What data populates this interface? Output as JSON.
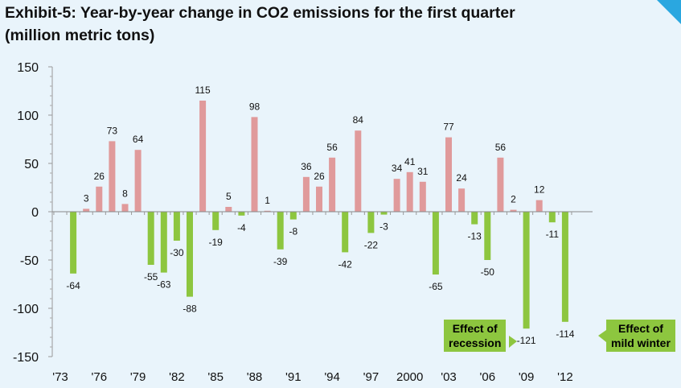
{
  "header": {
    "title_line1": "Exhibit-5: Year-by-year change in CO2 emissions for the first quarter",
    "title_line2": "(million metric tons)"
  },
  "chart_data": {
    "type": "bar",
    "title": "Exhibit-5: Year-by-year change in CO2 emissions for the first quarter (million metric tons)",
    "xlabel": "",
    "ylabel": "",
    "ylim": [
      -150,
      150
    ],
    "yticks": [
      150,
      100,
      50,
      0,
      -50,
      -100,
      -150
    ],
    "ytick_labels": [
      "150",
      "100",
      "50",
      "0",
      "-50",
      "-100",
      "-150"
    ],
    "grid": false,
    "categories": [
      1974,
      1975,
      1976,
      1977,
      1978,
      1979,
      1980,
      1981,
      1982,
      1983,
      1984,
      1985,
      1986,
      1987,
      1988,
      1989,
      1990,
      1991,
      1992,
      1993,
      1994,
      1995,
      1996,
      1997,
      1998,
      1999,
      2000,
      2001,
      2002,
      2003,
      2004,
      2005,
      2006,
      2007,
      2008,
      2009,
      2010,
      2011,
      2012
    ],
    "values": [
      -64,
      3,
      26,
      73,
      8,
      64,
      -55,
      -63,
      -30,
      -88,
      115,
      -19,
      5,
      -4,
      98,
      1,
      -39,
      -8,
      36,
      26,
      56,
      -42,
      84,
      -22,
      -3,
      34,
      41,
      31,
      -65,
      77,
      24,
      -13,
      -50,
      56,
      2,
      -121,
      12,
      -11,
      -114
    ],
    "value_labels": [
      "-64",
      "3",
      "26",
      "73",
      "8",
      "64",
      "-55",
      "-63",
      "-30",
      "-88",
      "115",
      "-19",
      "5",
      "-4",
      "98",
      "1",
      "-39",
      "-8",
      "36",
      "26",
      "56",
      "-42",
      "84",
      "-22",
      "-3",
      "34",
      "41",
      "31",
      "-65",
      "77",
      "24",
      "-13",
      "-50",
      "56",
      "2",
      "-121",
      "12",
      "-11",
      "-114"
    ],
    "xtick_positions": [
      1973,
      1976,
      1979,
      1982,
      1985,
      1988,
      1991,
      1994,
      1997,
      2000,
      2003,
      2006,
      2009,
      2012
    ],
    "xtick_labels": [
      "'73",
      "'76",
      "'79",
      "'82",
      "'85",
      "'88",
      "'91",
      "'94",
      "'97",
      "2000",
      "'03",
      "'06",
      "'09",
      "'12"
    ],
    "positive_color": "#e09a9b",
    "negative_color": "#8dc63f",
    "annotations": [
      {
        "line1": "Effect of",
        "line2": "recession",
        "year": 2009
      },
      {
        "line1": "Effect of",
        "line2": "mild winter",
        "year": 2012
      }
    ]
  }
}
